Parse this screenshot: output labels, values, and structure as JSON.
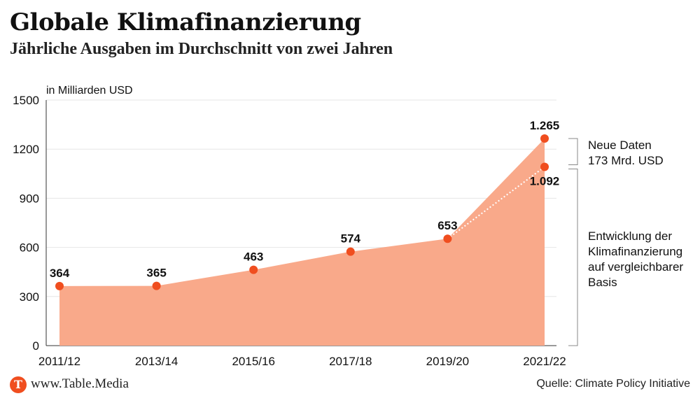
{
  "header": {
    "title": "Globale Klimafinanzierung",
    "subtitle": "Jährliche Ausgaben im Durchschnitt von zwei Jahren"
  },
  "footer": {
    "logo_letter": "T",
    "website": "www.Table.Media",
    "source": "Quelle: Climate Policy Initiative"
  },
  "colors": {
    "area_fill": "#f9a98a",
    "point": "#f04e1f",
    "text": "#111111",
    "grid": "#e6e6e6",
    "bracket": "#888888"
  },
  "chart_data": {
    "type": "area",
    "title": "Globale Klimafinanzierung",
    "subtitle": "Jährliche Ausgaben im Durchschnitt von zwei Jahren",
    "ylabel": "in Milliarden USD",
    "xlabel": "",
    "ylim": [
      0,
      1500
    ],
    "yticks": [
      0,
      300,
      600,
      900,
      1200,
      1500
    ],
    "categories": [
      "2011/12",
      "2013/14",
      "2015/16",
      "2017/18",
      "2019/20",
      "2021/22"
    ],
    "values": [
      364,
      365,
      463,
      574,
      653,
      1265
    ],
    "labels": [
      "364",
      "365",
      "463",
      "574",
      "653",
      "1.265"
    ],
    "comparable_basis_point": {
      "category": "2021/22",
      "value": 1092,
      "label": "1.092"
    },
    "annotations": {
      "new_data": [
        "Neue Daten",
        "173 Mrd. USD"
      ],
      "comparable": [
        "Entwicklung der",
        "Klimafinanzierung",
        "auf vergleichbarer",
        "Basis"
      ]
    },
    "grid": true
  }
}
